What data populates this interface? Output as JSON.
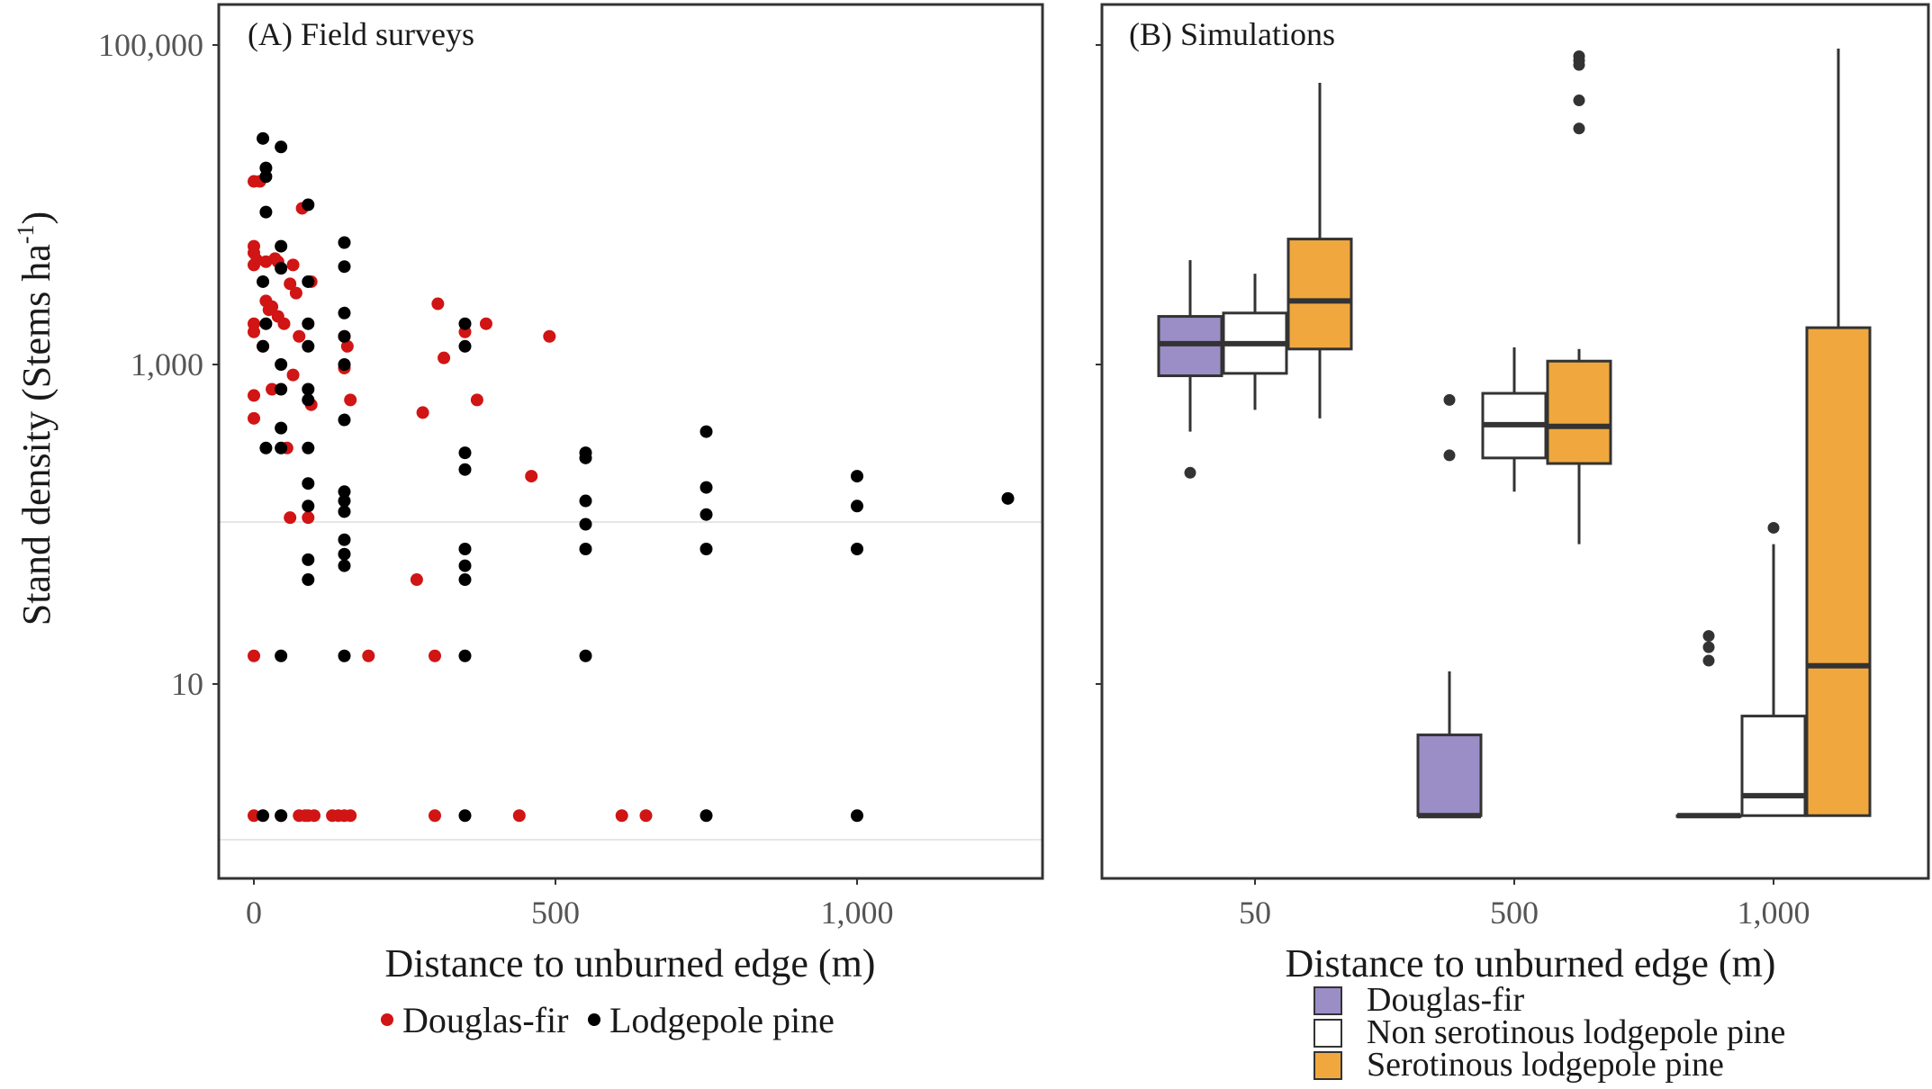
{
  "figure": {
    "panels": [
      "(A) Field surveys",
      "(B) Simulations"
    ]
  },
  "chart_data": [
    {
      "type": "scatter",
      "title": "(A) Field surveys",
      "xlabel": "Distance to unburned edge (m)",
      "ylabel": "Stand density (Stems  ha",
      "ylabel_sup": "-1",
      "ylabel_close": ")",
      "y_scale": "log",
      "xlim": [
        -60,
        1310
      ],
      "ylim": [
        0.9,
        150000
      ],
      "x_ticks": [
        0,
        500,
        1000
      ],
      "x_tick_labels": [
        "0",
        "500",
        "1,000"
      ],
      "y_ticks": [
        10,
        1000,
        100000
      ],
      "y_tick_labels": [
        "10",
        "1,000",
        "100,000"
      ],
      "grid": "off",
      "legend": "bottom",
      "colors": {
        "Douglas-fir": "#d11414",
        "Lodgepole pine": "#000000"
      },
      "series": [
        {
          "name": "Douglas-fir",
          "points": [
            [
              0,
              1.5
            ],
            [
              0,
              15
            ],
            [
              0,
              460
            ],
            [
              0,
              640
            ],
            [
              0,
              1600
            ],
            [
              0,
              1800
            ],
            [
              0,
              4200
            ],
            [
              0,
              5000
            ],
            [
              0,
              5500
            ],
            [
              0,
              14000
            ],
            [
              5,
              4500
            ],
            [
              10,
              14000
            ],
            [
              15,
              1300
            ],
            [
              20,
              4400
            ],
            [
              20,
              2500
            ],
            [
              25,
              2200
            ],
            [
              30,
              700
            ],
            [
              30,
              2300
            ],
            [
              35,
              4600
            ],
            [
              40,
              2000
            ],
            [
              40,
              4400
            ],
            [
              45,
              1.5
            ],
            [
              50,
              1800
            ],
            [
              55,
              300
            ],
            [
              60,
              110
            ],
            [
              60,
              3200
            ],
            [
              65,
              4200
            ],
            [
              65,
              860
            ],
            [
              70,
              2800
            ],
            [
              75,
              1.5
            ],
            [
              75,
              1500
            ],
            [
              80,
              9500
            ],
            [
              85,
              1.5
            ],
            [
              90,
              1.5
            ],
            [
              90,
              110
            ],
            [
              95,
              3300
            ],
            [
              95,
              560
            ],
            [
              100,
              1.5
            ],
            [
              130,
              1.5
            ],
            [
              140,
              1.5
            ],
            [
              150,
              950
            ],
            [
              150,
              1.5
            ],
            [
              150,
              1500
            ],
            [
              155,
              1300
            ],
            [
              160,
              1.5
            ],
            [
              160,
              600
            ],
            [
              190,
              15
            ],
            [
              270,
              45
            ],
            [
              280,
              500
            ],
            [
              300,
              15
            ],
            [
              300,
              1.5
            ],
            [
              305,
              2400
            ],
            [
              315,
              1100
            ],
            [
              350,
              1600
            ],
            [
              370,
              600
            ],
            [
              385,
              1800
            ],
            [
              440,
              1.5
            ],
            [
              460,
              200
            ],
            [
              490,
              1500
            ],
            [
              610,
              1.5
            ],
            [
              650,
              1.5
            ]
          ]
        },
        {
          "name": "Lodgepole pine",
          "points": [
            [
              15,
              26000
            ],
            [
              15,
              3300
            ],
            [
              15,
              1300
            ],
            [
              15,
              1.5
            ],
            [
              20,
              17000
            ],
            [
              20,
              15000
            ],
            [
              20,
              9000
            ],
            [
              20,
              1800
            ],
            [
              20,
              300
            ],
            [
              45,
              23000
            ],
            [
              45,
              5500
            ],
            [
              45,
              4000
            ],
            [
              45,
              1000
            ],
            [
              45,
              700
            ],
            [
              45,
              400
            ],
            [
              45,
              300
            ],
            [
              45,
              15
            ],
            [
              45,
              1.5
            ],
            [
              90,
              10000
            ],
            [
              90,
              3300
            ],
            [
              90,
              1800
            ],
            [
              90,
              1300
            ],
            [
              90,
              700
            ],
            [
              90,
              600
            ],
            [
              90,
              300
            ],
            [
              90,
              180
            ],
            [
              90,
              130
            ],
            [
              90,
              60
            ],
            [
              90,
              45
            ],
            [
              150,
              5800
            ],
            [
              150,
              4100
            ],
            [
              150,
              2100
            ],
            [
              150,
              1500
            ],
            [
              150,
              1000
            ],
            [
              150,
              450
            ],
            [
              150,
              160
            ],
            [
              150,
              140
            ],
            [
              150,
              120
            ],
            [
              150,
              80
            ],
            [
              150,
              65
            ],
            [
              150,
              55
            ],
            [
              150,
              15
            ],
            [
              350,
              1800
            ],
            [
              350,
              1300
            ],
            [
              350,
              280
            ],
            [
              350,
              220
            ],
            [
              350,
              70
            ],
            [
              350,
              55
            ],
            [
              350,
              45
            ],
            [
              350,
              15
            ],
            [
              350,
              1.5
            ],
            [
              550,
              280
            ],
            [
              550,
              260
            ],
            [
              550,
              140
            ],
            [
              550,
              100
            ],
            [
              550,
              70
            ],
            [
              550,
              15
            ],
            [
              750,
              380
            ],
            [
              750,
              170
            ],
            [
              750,
              115
            ],
            [
              750,
              70
            ],
            [
              750,
              1.5
            ],
            [
              1000,
              200
            ],
            [
              1000,
              130
            ],
            [
              1000,
              70
            ],
            [
              1000,
              1.5
            ],
            [
              1250,
              145
            ]
          ]
        }
      ],
      "legend_entries": [
        "Douglas-fir",
        "Lodgepole pine"
      ]
    },
    {
      "type": "box",
      "title": "(B) Simulations",
      "xlabel": "Distance to unburned edge (m)",
      "y_scale": "log",
      "ylim": [
        0.9,
        150000
      ],
      "categories": [
        "50",
        "500",
        "1,000"
      ],
      "grid": "off",
      "legend": "bottom",
      "series": [
        {
          "name": "Douglas-fir",
          "color": "#9b8ec7",
          "boxes": [
            {
              "category": "50",
              "whisker_low": 380,
              "q1": 850,
              "median": 1350,
              "q3": 2000,
              "whisker_high": 4500,
              "outliers": [
                210
              ]
            },
            {
              "category": "500",
              "whisker_low": 1.5,
              "q1": 1.5,
              "median": 1.5,
              "q3": 4.8,
              "whisker_high": 12,
              "outliers": [
                600,
                270
              ]
            },
            {
              "category": "1,000",
              "whisker_low": 1.5,
              "q1": 1.5,
              "median": 1.5,
              "q3": 1.5,
              "whisker_high": 1.5,
              "outliers": [
                20,
                17,
                14
              ]
            }
          ]
        },
        {
          "name": "Non serotinous lodgepole pine",
          "color": "#ffffff",
          "boxes": [
            {
              "category": "50",
              "whisker_low": 520,
              "q1": 880,
              "median": 1350,
              "q3": 2100,
              "whisker_high": 3700,
              "outliers": []
            },
            {
              "category": "500",
              "whisker_low": 160,
              "q1": 260,
              "median": 420,
              "q3": 660,
              "whisker_high": 1280,
              "outliers": []
            },
            {
              "category": "1,000",
              "whisker_low": 1.5,
              "q1": 1.5,
              "median": 2,
              "q3": 6.3,
              "whisker_high": 75,
              "outliers": [
                95
              ]
            }
          ]
        },
        {
          "name": "Serotinous lodgepole pine",
          "color": "#f0a83e",
          "boxes": [
            {
              "category": "50",
              "whisker_low": 460,
              "q1": 1250,
              "median": 2500,
              "q3": 6100,
              "whisker_high": 58000,
              "outliers": []
            },
            {
              "category": "500",
              "whisker_low": 75,
              "q1": 240,
              "median": 410,
              "q3": 1050,
              "whisker_high": 1250,
              "outliers": [
                85000,
                80000,
                75000,
                45000,
                30000
              ]
            },
            {
              "category": "1,000",
              "whisker_low": 1.5,
              "q1": 1.5,
              "median": 13,
              "q3": 1700,
              "whisker_high": 95000,
              "outliers": []
            }
          ]
        }
      ],
      "legend_entries": [
        "Douglas-fir",
        "Non serotinous lodgepole pine",
        "Serotinous lodgepole pine"
      ]
    }
  ]
}
